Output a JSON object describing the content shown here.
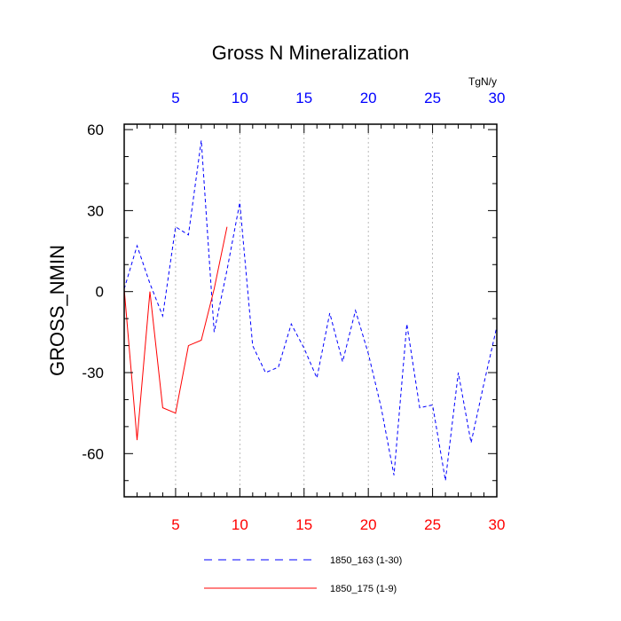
{
  "chart_data": {
    "type": "line",
    "title": "Gross N Mineralization",
    "ylabel": "GROSS_NMIN",
    "top_axis_units": "TgN/y",
    "xlim": [
      1,
      30
    ],
    "ylim": [
      -76,
      62
    ],
    "xticks": [
      5,
      10,
      15,
      20,
      25,
      30
    ],
    "yticks": [
      60,
      30,
      0,
      -30,
      -60
    ],
    "y_tick_labels": [
      "60",
      "30",
      "0",
      "-30",
      "-60"
    ],
    "grid": "vertical dashed at x ticks",
    "bottom_axis_color": "#ff0000",
    "top_axis_color": "#0000ff",
    "series": [
      {
        "name": "1850_163 (1-30)",
        "color": "#0000ff",
        "dashed": true,
        "x": [
          1,
          2,
          3,
          4,
          5,
          6,
          7,
          8,
          9,
          10,
          11,
          12,
          13,
          14,
          15,
          16,
          17,
          18,
          19,
          20,
          21,
          22,
          23,
          24,
          25,
          26,
          27,
          28,
          29,
          30
        ],
        "values": [
          1,
          17,
          3,
          -9,
          24,
          21,
          56,
          -15,
          8,
          33,
          -20,
          -30,
          -28,
          -12,
          -21,
          -32,
          -8,
          -26,
          -7,
          -23,
          -43,
          -68,
          -12,
          -43,
          -42,
          -70,
          -30,
          -56,
          -34,
          -13
        ]
      },
      {
        "name": "1850_175 (1-9)",
        "color": "#ff0000",
        "dashed": false,
        "x": [
          1,
          2,
          3,
          4,
          5,
          6,
          7,
          8,
          9
        ],
        "values": [
          1,
          -55,
          0,
          -43,
          -45,
          -20,
          -18,
          1,
          24
        ]
      }
    ],
    "legend_position": "bottom"
  }
}
